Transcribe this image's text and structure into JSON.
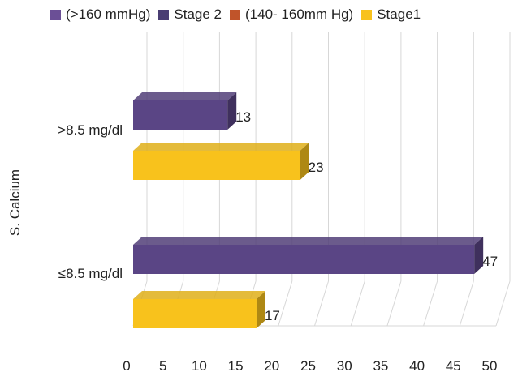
{
  "chart_data": {
    "type": "bar",
    "orientation": "horizontal",
    "ylabel": "S. Calcium",
    "xlim": [
      0,
      50
    ],
    "xticks": [
      "0",
      "5",
      "10",
      "15",
      "20",
      "25",
      "30",
      "35",
      "40",
      "45",
      "50"
    ],
    "categories": [
      ">8.5 mg/dl",
      "≤8.5 mg/dl"
    ],
    "legend": [
      {
        "name": "(>160 mmHg)",
        "color": "#6b4f96"
      },
      {
        "name": "Stage 2",
        "color": "#4a3d73"
      },
      {
        "name": "(140- 160mm Hg)",
        "color": "#c0542a"
      },
      {
        "name": "Stage1",
        "color": "#f8c21c"
      }
    ],
    "series": [
      {
        "name": "Stage 2",
        "color": "#5a4585",
        "values": [
          13,
          47
        ]
      },
      {
        "name": "Stage1",
        "color": "#f8c21c",
        "values": [
          23,
          17
        ]
      }
    ],
    "grid": true,
    "legend_position": "top"
  }
}
